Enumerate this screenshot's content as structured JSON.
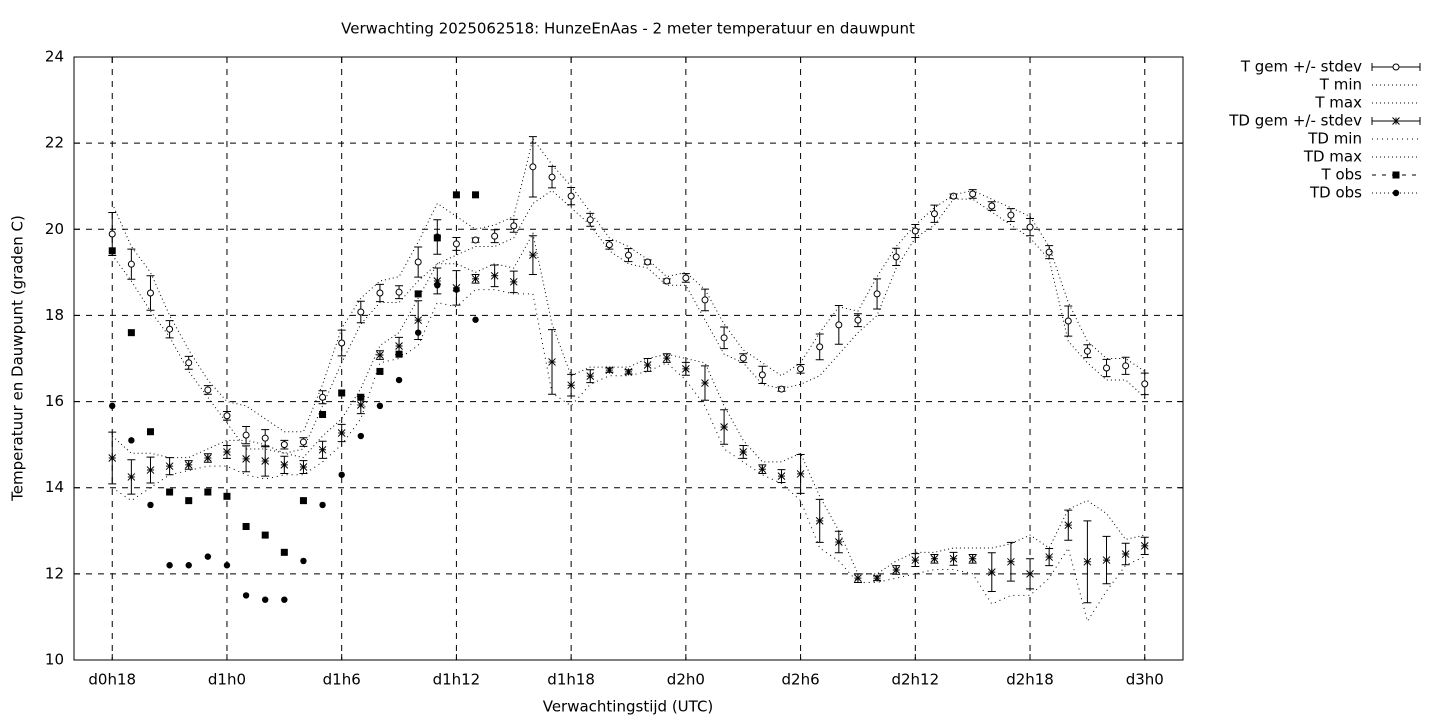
{
  "chart_data": {
    "type": "errorbar-line",
    "title": "Verwachting 2025062518: HunzeEnAas - 2 meter temperatuur en dauwpunt",
    "xlabel": "Verwachtingstijd (UTC)",
    "ylabel": "Temperatuur en Dauwpunt (graden C)",
    "xlim": [
      16,
      74
    ],
    "ylim": [
      10,
      24
    ],
    "xticks": [
      {
        "value": 18,
        "label": "d0h18"
      },
      {
        "value": 24,
        "label": "d1h0"
      },
      {
        "value": 30,
        "label": "d1h6"
      },
      {
        "value": 36,
        "label": "d1h12"
      },
      {
        "value": 42,
        "label": "d1h18"
      },
      {
        "value": 48,
        "label": "d2h0"
      },
      {
        "value": 54,
        "label": "d2h6"
      },
      {
        "value": 60,
        "label": "d2h12"
      },
      {
        "value": 66,
        "label": "d2h18"
      },
      {
        "value": 72,
        "label": "d3h0"
      }
    ],
    "yticks": [
      10,
      12,
      14,
      16,
      18,
      20,
      22,
      24
    ],
    "grid": true,
    "series": [
      {
        "name": "T gem +/- stdev",
        "color": "#000000",
        "marker": "circle-open",
        "dash": "none",
        "x": [
          18,
          19,
          20,
          21,
          22,
          23,
          24,
          25,
          26,
          27,
          28,
          29,
          30,
          31,
          32,
          33,
          34,
          35,
          36,
          37,
          38,
          39,
          40,
          41,
          42,
          43,
          44,
          45,
          46,
          47,
          48,
          49,
          50,
          51,
          52,
          53,
          54,
          55,
          56,
          57,
          58,
          59,
          60,
          61,
          62,
          63,
          64,
          65,
          66,
          67,
          68,
          69,
          70,
          71,
          72
        ],
        "values": [
          19.89,
          19.19,
          18.52,
          17.68,
          16.9,
          16.27,
          15.67,
          15.22,
          15.15,
          15.0,
          15.06,
          16.1,
          17.36,
          18.08,
          18.52,
          18.54,
          19.24,
          19.82,
          19.66,
          19.75,
          19.84,
          20.08,
          21.45,
          21.21,
          20.77,
          20.22,
          19.64,
          19.4,
          19.24,
          18.8,
          18.87,
          18.36,
          17.48,
          17.01,
          16.62,
          16.29,
          16.76,
          17.27,
          17.78,
          17.89,
          18.5,
          19.36,
          19.96,
          20.36,
          20.77,
          20.82,
          20.54,
          20.33,
          20.05,
          19.47,
          17.87,
          17.17,
          16.78,
          16.83,
          16.41
        ],
        "errors": [
          0.5,
          0.35,
          0.4,
          0.2,
          0.15,
          0.1,
          0.1,
          0.2,
          0.2,
          0.1,
          0.1,
          0.15,
          0.3,
          0.25,
          0.2,
          0.15,
          0.35,
          0.4,
          0.15,
          0.05,
          0.15,
          0.15,
          0.7,
          0.25,
          0.2,
          0.15,
          0.1,
          0.15,
          0.05,
          0.05,
          0.1,
          0.25,
          0.25,
          0.1,
          0.2,
          0.05,
          0.1,
          0.3,
          0.45,
          0.15,
          0.35,
          0.2,
          0.15,
          0.2,
          0.05,
          0.1,
          0.1,
          0.15,
          0.2,
          0.15,
          0.35,
          0.15,
          0.2,
          0.2,
          0.25
        ]
      },
      {
        "name": "T min",
        "color": "#000000",
        "marker": "none",
        "dash": "1 3",
        "x": [
          18,
          19,
          20,
          21,
          22,
          23,
          24,
          25,
          26,
          27,
          28,
          29,
          30,
          31,
          32,
          33,
          34,
          35,
          36,
          37,
          38,
          39,
          40,
          41,
          42,
          43,
          44,
          45,
          46,
          47,
          48,
          49,
          50,
          51,
          52,
          53,
          54,
          55,
          56,
          57,
          58,
          59,
          60,
          61,
          62,
          63,
          64,
          65,
          66,
          67,
          68,
          69,
          70,
          71,
          72
        ],
        "values": [
          19.4,
          18.8,
          18.1,
          17.5,
          16.7,
          16.1,
          15.5,
          14.9,
          14.9,
          14.8,
          14.9,
          15.9,
          16.9,
          17.8,
          18.3,
          18.3,
          18.8,
          19.2,
          19.4,
          19.6,
          19.6,
          19.8,
          20.6,
          20.9,
          20.5,
          20.1,
          19.5,
          19.2,
          19.1,
          18.7,
          18.7,
          17.9,
          17.1,
          16.9,
          16.4,
          16.3,
          16.4,
          16.6,
          17.1,
          17.6,
          18.0,
          19.1,
          19.8,
          20.1,
          20.7,
          20.7,
          20.4,
          20.1,
          19.8,
          19.3,
          17.4,
          16.9,
          16.5,
          16.5,
          16.1
        ]
      },
      {
        "name": "T max",
        "color": "#000000",
        "marker": "none",
        "dash": "1 3",
        "x": [
          18,
          19,
          20,
          21,
          22,
          23,
          24,
          25,
          26,
          27,
          28,
          29,
          30,
          31,
          32,
          33,
          34,
          35,
          36,
          37,
          38,
          39,
          40,
          41,
          42,
          43,
          44,
          45,
          46,
          47,
          48,
          49,
          50,
          51,
          52,
          53,
          54,
          55,
          56,
          57,
          58,
          59,
          60,
          61,
          62,
          63,
          64,
          65,
          66,
          67,
          68,
          69,
          70,
          71,
          72
        ],
        "values": [
          20.6,
          19.6,
          19.0,
          18.0,
          17.2,
          16.5,
          16.0,
          15.9,
          15.6,
          15.3,
          15.3,
          16.4,
          17.7,
          18.4,
          18.8,
          18.9,
          19.7,
          20.6,
          20.3,
          20.0,
          20.1,
          20.3,
          22.1,
          21.5,
          21.0,
          20.4,
          19.8,
          19.6,
          19.3,
          18.9,
          19.0,
          18.6,
          17.8,
          17.2,
          16.9,
          16.6,
          16.9,
          17.6,
          18.2,
          18.1,
          18.9,
          19.6,
          20.1,
          20.5,
          20.8,
          20.9,
          20.7,
          20.5,
          20.3,
          19.6,
          18.3,
          17.4,
          17.0,
          17.0,
          16.7
        ]
      },
      {
        "name": "TD gem +/- stdev",
        "color": "#000000",
        "marker": "star",
        "dash": "none",
        "x": [
          18,
          19,
          20,
          21,
          22,
          23,
          24,
          25,
          26,
          27,
          28,
          29,
          30,
          31,
          32,
          33,
          34,
          35,
          36,
          37,
          38,
          39,
          40,
          41,
          42,
          43,
          44,
          45,
          46,
          47,
          48,
          49,
          50,
          51,
          52,
          53,
          54,
          55,
          56,
          57,
          58,
          59,
          60,
          61,
          62,
          63,
          64,
          65,
          66,
          67,
          68,
          69,
          70,
          71,
          72
        ],
        "values": [
          14.69,
          14.25,
          14.41,
          14.5,
          14.53,
          14.69,
          14.83,
          14.67,
          14.62,
          14.53,
          14.48,
          14.88,
          15.27,
          15.92,
          17.08,
          17.29,
          17.89,
          18.8,
          18.64,
          18.85,
          18.92,
          18.78,
          19.4,
          16.92,
          16.38,
          16.59,
          16.73,
          16.69,
          16.85,
          17.01,
          16.76,
          16.43,
          15.41,
          14.83,
          14.43,
          14.27,
          14.32,
          13.23,
          12.74,
          11.9,
          11.9,
          12.09,
          12.32,
          12.35,
          12.35,
          12.35,
          12.04,
          12.28,
          12.0,
          12.39,
          13.13,
          12.28,
          12.32,
          12.46,
          12.65
        ],
        "errors": [
          0.6,
          0.4,
          0.3,
          0.2,
          0.1,
          0.1,
          0.15,
          0.3,
          0.35,
          0.2,
          0.15,
          0.2,
          0.2,
          0.2,
          0.1,
          0.2,
          0.45,
          0.3,
          0.4,
          0.1,
          0.25,
          0.25,
          0.45,
          0.75,
          0.25,
          0.15,
          0.05,
          0.05,
          0.15,
          0.1,
          0.15,
          0.4,
          0.4,
          0.15,
          0.1,
          0.15,
          0.45,
          0.5,
          0.25,
          0.1,
          0.05,
          0.1,
          0.15,
          0.1,
          0.15,
          0.1,
          0.45,
          0.45,
          0.35,
          0.2,
          0.35,
          0.95,
          0.55,
          0.25,
          0.2
        ]
      },
      {
        "name": "TD min",
        "color": "#000000",
        "marker": "none",
        "dash": "1 4",
        "x": [
          18,
          19,
          20,
          21,
          22,
          23,
          24,
          25,
          26,
          27,
          28,
          29,
          30,
          31,
          32,
          33,
          34,
          35,
          36,
          37,
          38,
          39,
          40,
          41,
          42,
          43,
          44,
          45,
          46,
          47,
          48,
          49,
          50,
          51,
          52,
          53,
          54,
          55,
          56,
          57,
          58,
          59,
          60,
          61,
          62,
          63,
          64,
          65,
          66,
          67,
          68,
          69,
          70,
          71,
          72
        ],
        "values": [
          14.0,
          13.7,
          14.0,
          14.3,
          14.4,
          14.5,
          14.5,
          14.3,
          14.2,
          14.3,
          14.3,
          14.6,
          15.0,
          15.6,
          16.9,
          17.0,
          17.3,
          18.3,
          18.2,
          18.6,
          18.6,
          18.5,
          18.5,
          16.2,
          15.9,
          16.4,
          16.6,
          16.6,
          16.7,
          16.9,
          16.5,
          15.9,
          14.9,
          14.6,
          14.3,
          14.1,
          13.7,
          12.6,
          12.3,
          11.8,
          11.8,
          11.9,
          12.0,
          12.1,
          12.1,
          12.0,
          11.3,
          11.5,
          11.5,
          11.9,
          12.6,
          10.9,
          11.6,
          12.2,
          12.4
        ]
      },
      {
        "name": "TD max",
        "color": "#000000",
        "marker": "none",
        "dash": "1 3",
        "x": [
          18,
          19,
          20,
          21,
          22,
          23,
          24,
          25,
          26,
          27,
          28,
          29,
          30,
          31,
          32,
          33,
          34,
          35,
          36,
          37,
          38,
          39,
          40,
          41,
          42,
          43,
          44,
          45,
          46,
          47,
          48,
          49,
          50,
          51,
          52,
          53,
          54,
          55,
          56,
          57,
          58,
          59,
          60,
          61,
          62,
          63,
          64,
          65,
          66,
          67,
          68,
          69,
          70,
          71,
          72
        ],
        "values": [
          15.2,
          14.8,
          14.8,
          14.7,
          14.7,
          14.9,
          15.1,
          15.1,
          15.0,
          14.8,
          14.7,
          15.2,
          15.6,
          16.3,
          17.3,
          17.6,
          18.4,
          19.2,
          19.2,
          19.0,
          19.2,
          19.1,
          19.9,
          17.8,
          16.6,
          16.8,
          16.8,
          16.8,
          17.0,
          17.1,
          17.0,
          16.9,
          15.9,
          15.1,
          14.6,
          14.6,
          14.8,
          13.8,
          13.0,
          12.0,
          12.0,
          12.3,
          12.5,
          12.5,
          12.6,
          12.6,
          12.6,
          12.7,
          12.9,
          12.6,
          13.5,
          13.7,
          13.4,
          12.8,
          12.9
        ]
      },
      {
        "name": "T obs",
        "color": "#000000",
        "marker": "square-filled",
        "dash": "4 6",
        "x": [
          18,
          19,
          20,
          21,
          22,
          23,
          24,
          25,
          26,
          27,
          28,
          29,
          30,
          31,
          32,
          33,
          34,
          35,
          36,
          37
        ],
        "values": [
          19.5,
          17.6,
          15.3,
          13.9,
          13.7,
          13.9,
          13.8,
          13.1,
          12.9,
          12.5,
          13.7,
          15.7,
          16.2,
          16.1,
          16.7,
          17.1,
          18.5,
          19.8,
          20.8,
          20.8
        ]
      },
      {
        "name": "TD obs",
        "color": "#000000",
        "marker": "circle-filled",
        "dash": "1 3",
        "x": [
          18,
          19,
          20,
          21,
          22,
          23,
          24,
          25,
          26,
          27,
          28,
          29,
          30,
          31,
          32,
          33,
          34,
          35,
          36,
          37
        ],
        "values": [
          15.9,
          15.1,
          13.6,
          12.2,
          12.2,
          12.4,
          12.2,
          11.5,
          11.4,
          11.4,
          12.3,
          13.6,
          14.3,
          15.2,
          15.9,
          16.5,
          17.6,
          18.7,
          18.6,
          17.9
        ]
      }
    ]
  }
}
